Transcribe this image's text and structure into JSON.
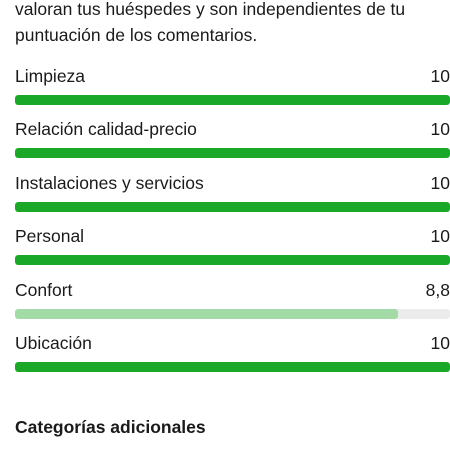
{
  "intro": {
    "line1": "valoran tus huéspedes y son independientes de tu",
    "line2": "puntuación de los comentarios."
  },
  "ratings": [
    {
      "label": "Limpieza",
      "score": "10",
      "fraction": 1.0,
      "style": "full"
    },
    {
      "label": "Relación calidad-precio",
      "score": "10",
      "fraction": 1.0,
      "style": "full"
    },
    {
      "label": "Instalaciones y servicios",
      "score": "10",
      "fraction": 1.0,
      "style": "full"
    },
    {
      "label": "Personal",
      "score": "10",
      "fraction": 1.0,
      "style": "full"
    },
    {
      "label": "Confort",
      "score": "8,8",
      "fraction": 0.88,
      "style": "soft"
    },
    {
      "label": "Ubicación",
      "score": "10",
      "fraction": 1.0,
      "style": "full"
    }
  ],
  "additional": {
    "title": "Categorías adicionales"
  },
  "colors": {
    "bar_full": "#1aa829",
    "bar_soft": "#a3dba6",
    "track": "#ececec"
  }
}
